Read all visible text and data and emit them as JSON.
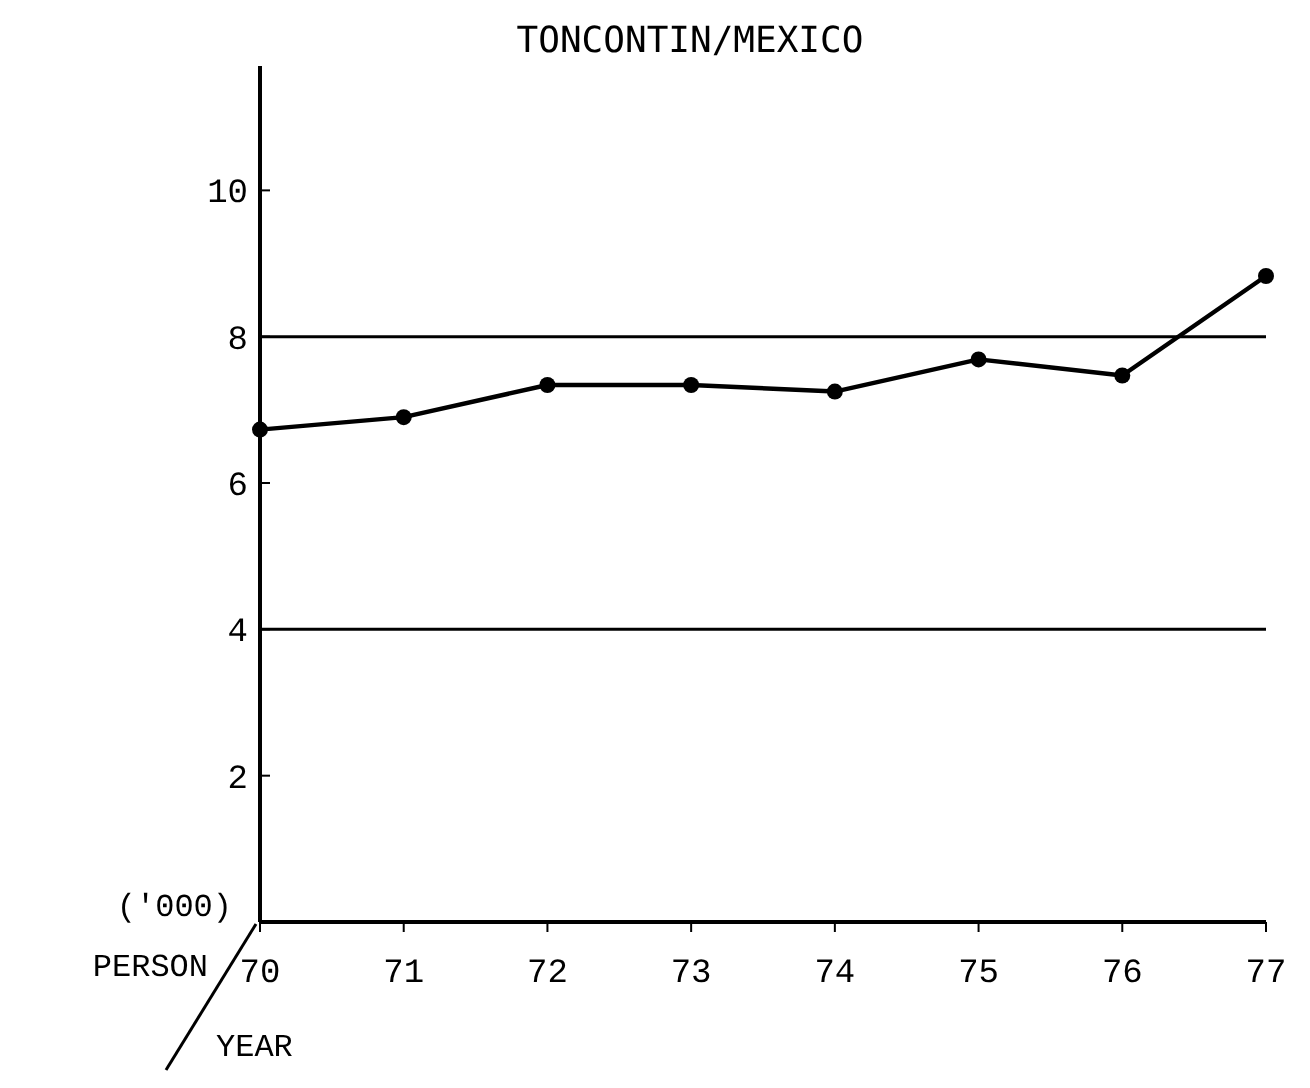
{
  "chart_data": {
    "type": "line",
    "title": "TONCONTIN/MEXICO",
    "xlabel": "YEAR",
    "ylabel": "('000) PERSON",
    "x": [
      70,
      71,
      72,
      73,
      74,
      75,
      76,
      77
    ],
    "series": [
      {
        "color": "#000000",
        "values": [
          6.73,
          6.9,
          7.34,
          7.34,
          7.25,
          7.69,
          7.47,
          8.83
        ]
      }
    ],
    "xlim": [
      70,
      77
    ],
    "xticks": [
      70,
      71,
      72,
      73,
      74,
      75,
      76,
      77
    ],
    "ylim": [
      0,
      11.7
    ],
    "yticks": [
      2,
      4,
      6,
      8,
      10
    ],
    "ref_lines": [
      {
        "axis": "y",
        "value": 8,
        "color": "#000000"
      },
      {
        "axis": "y",
        "value": 4,
        "color": "#000000"
      }
    ],
    "marker": "circle",
    "line_style": "solid"
  }
}
